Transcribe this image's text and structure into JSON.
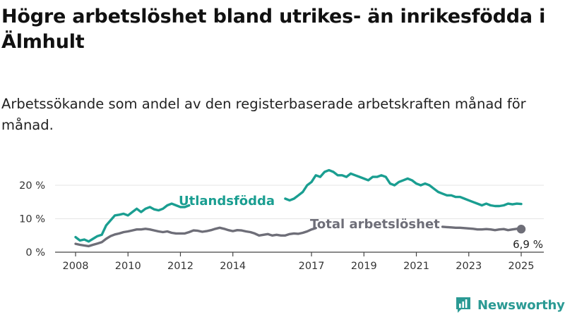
{
  "title": "Högre arbetslöshet bland utrikes- än inrikesfödda i Älmhult",
  "subtitle": "Arbetssökande som andel av den registerbaserade arbetskraften månad för månad.",
  "brand": {
    "name": "Newsworthy",
    "logo_icon": "newsworthy-logo-icon"
  },
  "colors": {
    "foreign_born": "#1a9e91",
    "total": "#6e6e78",
    "axis": "#444444",
    "grid": "#e6e6e6"
  },
  "chart_data": {
    "type": "line",
    "x_ticks": [
      "2008",
      "2010",
      "2012",
      "2014",
      "2017",
      "2019",
      "2021",
      "2023",
      "2025"
    ],
    "y_ticks": [
      "0 %",
      "10 %",
      "20 %"
    ],
    "ylim": [
      0,
      25
    ],
    "grid": true,
    "end_label": "6,9 %",
    "series": [
      {
        "name": "Utlandsfödda",
        "color": "#1a9e91",
        "segments": [
          [
            [
              "2008-01",
              4.5
            ],
            [
              "2008-03",
              3.5
            ],
            [
              "2008-05",
              3.8
            ],
            [
              "2008-07",
              3.2
            ],
            [
              "2008-09",
              4.0
            ],
            [
              "2008-11",
              4.8
            ],
            [
              "2009-01",
              5.2
            ],
            [
              "2009-03",
              8.0
            ],
            [
              "2009-05",
              9.5
            ],
            [
              "2009-07",
              11.0
            ],
            [
              "2009-09",
              11.2
            ],
            [
              "2009-11",
              11.5
            ],
            [
              "2010-01",
              11.0
            ],
            [
              "2010-03",
              12.0
            ],
            [
              "2010-05",
              13.0
            ],
            [
              "2010-07",
              12.0
            ],
            [
              "2010-09",
              13.0
            ],
            [
              "2010-11",
              13.5
            ],
            [
              "2011-01",
              12.8
            ],
            [
              "2011-03",
              12.5
            ],
            [
              "2011-05",
              13.0
            ],
            [
              "2011-07",
              14.0
            ],
            [
              "2011-09",
              14.5
            ],
            [
              "2011-11",
              14.0
            ],
            [
              "2012-01",
              13.5
            ],
            [
              "2012-03",
              13.5
            ],
            [
              "2012-05",
              14.0
            ]
          ],
          [
            [
              "2016-01",
              16.0
            ],
            [
              "2016-03",
              15.5
            ],
            [
              "2016-05",
              16.0
            ],
            [
              "2016-07",
              17.0
            ],
            [
              "2016-09",
              18.0
            ],
            [
              "2016-11",
              20.0
            ],
            [
              "2017-01",
              21.0
            ],
            [
              "2017-03",
              23.0
            ],
            [
              "2017-05",
              22.5
            ],
            [
              "2017-07",
              24.0
            ],
            [
              "2017-09",
              24.5
            ],
            [
              "2017-11",
              24.0
            ],
            [
              "2018-01",
              23.0
            ],
            [
              "2018-03",
              23.0
            ],
            [
              "2018-05",
              22.5
            ],
            [
              "2018-07",
              23.5
            ],
            [
              "2018-09",
              23.0
            ],
            [
              "2018-11",
              22.5
            ],
            [
              "2019-01",
              22.0
            ],
            [
              "2019-03",
              21.5
            ],
            [
              "2019-05",
              22.5
            ],
            [
              "2019-07",
              22.5
            ],
            [
              "2019-09",
              23.0
            ],
            [
              "2019-11",
              22.5
            ],
            [
              "2020-01",
              20.5
            ],
            [
              "2020-03",
              20.0
            ],
            [
              "2020-05",
              21.0
            ],
            [
              "2020-07",
              21.5
            ],
            [
              "2020-09",
              22.0
            ],
            [
              "2020-11",
              21.5
            ],
            [
              "2021-01",
              20.5
            ],
            [
              "2021-03",
              20.0
            ],
            [
              "2021-05",
              20.5
            ],
            [
              "2021-07",
              20.0
            ],
            [
              "2021-09",
              19.0
            ],
            [
              "2021-11",
              18.0
            ],
            [
              "2022-01",
              17.5
            ],
            [
              "2022-03",
              17.0
            ],
            [
              "2022-05",
              17.0
            ],
            [
              "2022-07",
              16.5
            ],
            [
              "2022-09",
              16.5
            ],
            [
              "2022-11",
              16.0
            ],
            [
              "2023-01",
              15.5
            ],
            [
              "2023-03",
              15.0
            ],
            [
              "2023-05",
              14.5
            ],
            [
              "2023-07",
              14.0
            ],
            [
              "2023-09",
              14.5
            ],
            [
              "2023-11",
              14.0
            ],
            [
              "2024-01",
              13.8
            ],
            [
              "2024-03",
              13.8
            ],
            [
              "2024-05",
              14.0
            ],
            [
              "2024-07",
              14.5
            ],
            [
              "2024-09",
              14.3
            ],
            [
              "2024-11",
              14.5
            ],
            [
              "2025-01",
              14.4
            ]
          ]
        ]
      },
      {
        "name": "Total arbetslöshet",
        "color": "#6e6e78",
        "segments": [
          [
            [
              "2008-01",
              2.5
            ],
            [
              "2008-03",
              2.2
            ],
            [
              "2008-05",
              2.0
            ],
            [
              "2008-07",
              1.8
            ],
            [
              "2008-09",
              2.2
            ],
            [
              "2008-11",
              2.6
            ],
            [
              "2009-01",
              3.0
            ],
            [
              "2009-03",
              4.0
            ],
            [
              "2009-05",
              4.8
            ],
            [
              "2009-07",
              5.3
            ],
            [
              "2009-09",
              5.6
            ],
            [
              "2009-11",
              6.0
            ],
            [
              "2010-01",
              6.2
            ],
            [
              "2010-03",
              6.5
            ],
            [
              "2010-05",
              6.8
            ],
            [
              "2010-07",
              6.8
            ],
            [
              "2010-09",
              7.0
            ],
            [
              "2010-11",
              6.8
            ],
            [
              "2011-01",
              6.5
            ],
            [
              "2011-03",
              6.2
            ],
            [
              "2011-05",
              6.0
            ],
            [
              "2011-07",
              6.2
            ],
            [
              "2011-09",
              5.8
            ],
            [
              "2011-11",
              5.6
            ],
            [
              "2012-01",
              5.6
            ],
            [
              "2012-03",
              5.6
            ],
            [
              "2012-05",
              6.0
            ],
            [
              "2012-07",
              6.5
            ],
            [
              "2012-09",
              6.4
            ],
            [
              "2012-11",
              6.1
            ],
            [
              "2013-01",
              6.3
            ],
            [
              "2013-03",
              6.6
            ],
            [
              "2013-05",
              7.0
            ],
            [
              "2013-07",
              7.3
            ],
            [
              "2013-09",
              7.0
            ],
            [
              "2013-11",
              6.6
            ],
            [
              "2014-01",
              6.3
            ],
            [
              "2014-03",
              6.6
            ],
            [
              "2014-05",
              6.5
            ],
            [
              "2014-07",
              6.2
            ],
            [
              "2014-09",
              6.0
            ],
            [
              "2014-11",
              5.6
            ],
            [
              "2015-01",
              5.0
            ],
            [
              "2015-03",
              5.2
            ],
            [
              "2015-05",
              5.4
            ],
            [
              "2015-07",
              5.0
            ],
            [
              "2015-09",
              5.2
            ],
            [
              "2015-11",
              5.0
            ],
            [
              "2016-01",
              5.0
            ],
            [
              "2016-03",
              5.4
            ],
            [
              "2016-05",
              5.6
            ],
            [
              "2016-07",
              5.5
            ],
            [
              "2016-09",
              5.8
            ],
            [
              "2016-11",
              6.2
            ],
            [
              "2017-01",
              6.8
            ],
            [
              "2017-03",
              7.2
            ]
          ],
          [
            [
              "2022-01",
              7.6
            ],
            [
              "2022-03",
              7.5
            ],
            [
              "2022-05",
              7.4
            ],
            [
              "2022-07",
              7.3
            ],
            [
              "2022-09",
              7.3
            ],
            [
              "2022-11",
              7.2
            ],
            [
              "2023-01",
              7.1
            ],
            [
              "2023-03",
              7.0
            ],
            [
              "2023-05",
              6.8
            ],
            [
              "2023-07",
              6.8
            ],
            [
              "2023-09",
              6.9
            ],
            [
              "2023-11",
              6.8
            ],
            [
              "2024-01",
              6.6
            ],
            [
              "2024-03",
              6.8
            ],
            [
              "2024-05",
              6.9
            ],
            [
              "2024-07",
              6.6
            ],
            [
              "2024-09",
              6.8
            ],
            [
              "2024-11",
              7.0
            ],
            [
              "2025-01",
              6.9
            ]
          ]
        ]
      }
    ]
  }
}
